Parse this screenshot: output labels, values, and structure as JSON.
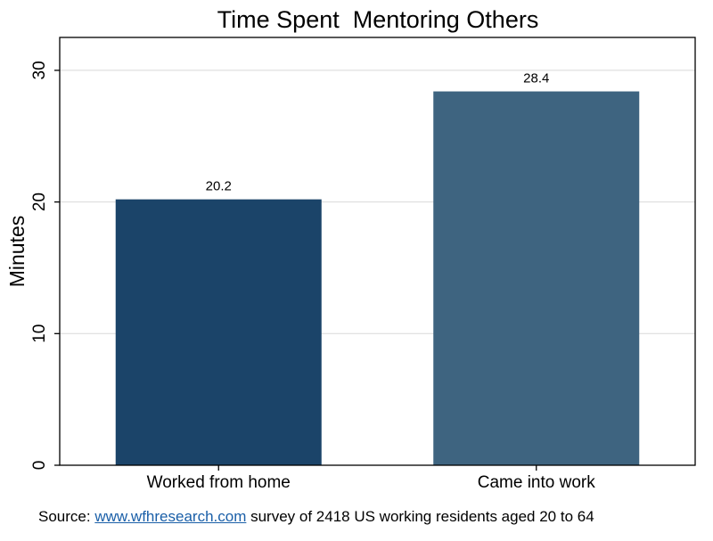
{
  "chart_data": {
    "type": "bar",
    "title": "Time Spent  Mentoring Others",
    "ylabel": "Minutes",
    "xlabel": "",
    "categories": [
      "Worked from home",
      "Came into work"
    ],
    "values": [
      20.2,
      28.4
    ],
    "value_labels": [
      "20.2",
      "28.4"
    ],
    "colors": [
      "#1b4469",
      "#3e6480"
    ],
    "ylim": [
      0,
      32.5
    ],
    "yticks": [
      0,
      10,
      20,
      30
    ],
    "grid": true,
    "gridColor": "#d9d9d9"
  },
  "source": {
    "prefix": "Source: ",
    "link_text": "www.wfhresearch.com",
    "suffix": " survey of 2418 US working residents aged 20 to 64"
  }
}
